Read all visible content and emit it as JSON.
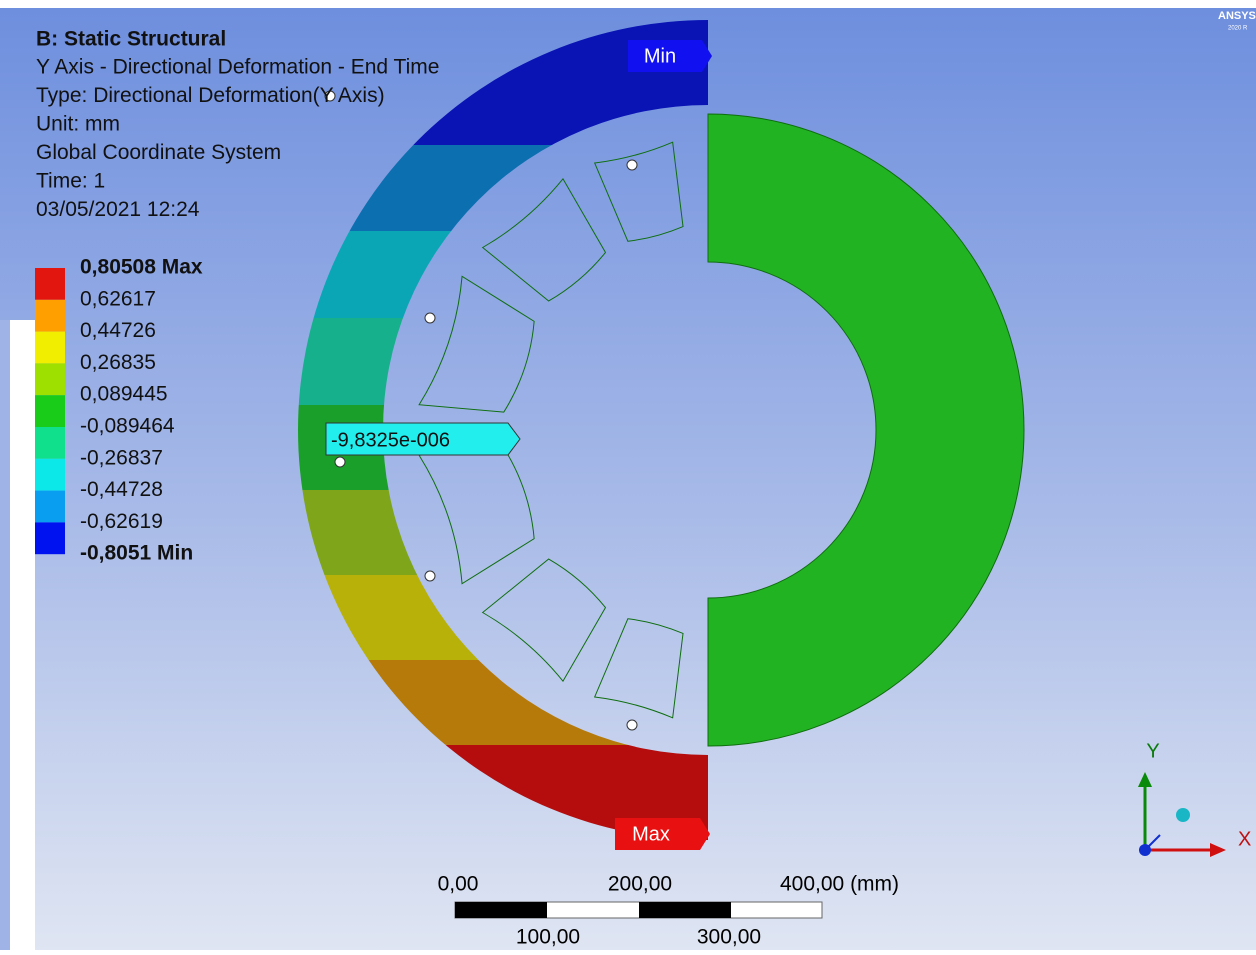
{
  "header": {
    "title": "B: Static Structural",
    "lines": [
      "Y Axis - Directional Deformation - End Time",
      "Type: Directional Deformation(Y Axis)",
      "Unit: mm",
      "Global Coordinate System",
      "Time: 1",
      "03/05/2021 12:24"
    ]
  },
  "legend": {
    "labels": [
      "0,80508 Max",
      "0,62617",
      "0,44726",
      "0,26835",
      "0,089445",
      "-0,089464",
      "-0,26837",
      "-0,44728",
      "-0,62619",
      "-0,8051 Min"
    ],
    "colors": [
      "#e3150f",
      "#ff9f00",
      "#f2ee00",
      "#9ee000",
      "#19cc19",
      "#10e08c",
      "#0ce8e8",
      "#0a9ef0",
      "#0012f0"
    ]
  },
  "probe": "-9,8325e-006",
  "min_tag": "Min",
  "max_tag": "Max",
  "scale_bar": {
    "top": [
      "0,00",
      "200,00",
      "400,00 (mm)"
    ],
    "bottom": [
      "100,00",
      "300,00"
    ]
  },
  "triad": {
    "y": "Y",
    "x": "X"
  },
  "logo": {
    "name": "ANSYS",
    "version": "2020 R"
  }
}
